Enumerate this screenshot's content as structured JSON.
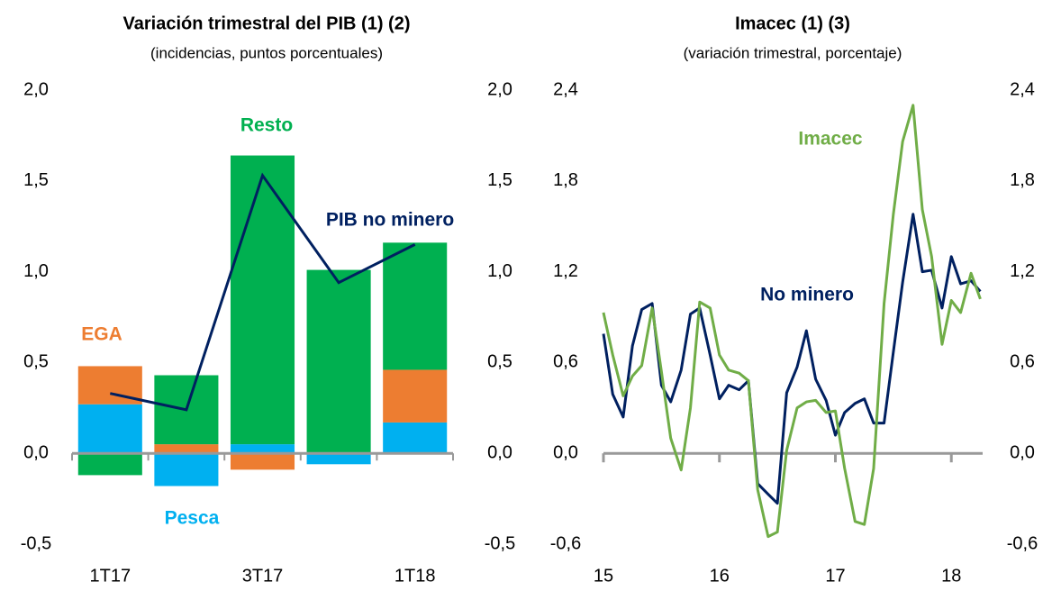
{
  "chart_data": [
    {
      "type": "bar",
      "stacked": true,
      "title": "Variación trimestral del PIB (1) (2)",
      "subtitle": "(incidencias, puntos porcentuales)",
      "categories": [
        "1T17",
        null,
        "3T17",
        null,
        "1T18"
      ],
      "series": [
        {
          "name": "Pesca",
          "color": "#00b0f0",
          "values": [
            0.27,
            -0.18,
            0.05,
            -0.06,
            0.17
          ]
        },
        {
          "name": "EGA",
          "color": "#ed7d31",
          "values": [
            0.21,
            0.05,
            -0.09,
            0,
            0.29
          ]
        },
        {
          "name": "Resto",
          "color": "#00b050",
          "values": [
            -0.12,
            0.38,
            1.59,
            1.01,
            0.7
          ]
        },
        {
          "name": "PIB no minero",
          "color": "#002060",
          "type": "line",
          "values": [
            0.33,
            0.24,
            1.53,
            0.94,
            1.15
          ]
        }
      ],
      "ylim": [
        -0.5,
        2.0
      ],
      "yticks": [
        {
          "value": -0.5,
          "label": "-0,5"
        },
        {
          "value": 0,
          "label": "0,0"
        },
        {
          "value": 0.5,
          "label": "0,5"
        },
        {
          "value": 1.0,
          "label": "1,0"
        },
        {
          "value": 1.5,
          "label": "1,5"
        },
        {
          "value": 2.0,
          "label": "2,0"
        }
      ],
      "grid": false
    },
    {
      "type": "line",
      "title": "Imacec (1) (3)",
      "subtitle": "(variación trimestral, porcentaje)",
      "x": [
        15,
        15.08,
        15.17,
        15.25,
        15.33,
        15.42,
        15.5,
        15.58,
        15.67,
        15.75,
        15.83,
        15.92,
        16,
        16.08,
        16.17,
        16.25,
        16.33,
        16.42,
        16.5,
        16.58,
        16.67,
        16.75,
        16.83,
        16.92,
        17,
        17.08,
        17.17,
        17.25,
        17.33,
        17.42,
        17.5,
        17.58,
        17.67,
        17.75,
        17.83,
        17.92,
        18,
        18.08,
        18.17,
        18.25
      ],
      "series": [
        {
          "name": "No minero",
          "color": "#002060",
          "values": [
            0.79,
            0.39,
            0.24,
            0.71,
            0.95,
            0.99,
            0.45,
            0.34,
            0.55,
            0.92,
            0.96,
            0.65,
            0.36,
            0.45,
            0.42,
            0.48,
            -0.2,
            -0.27,
            -0.33,
            0.4,
            0.57,
            0.81,
            0.49,
            0.35,
            0.12,
            0.27,
            0.33,
            0.36,
            0.2,
            0.2,
            0.67,
            1.13,
            1.58,
            1.2,
            1.21,
            0.96,
            1.3,
            1.12,
            1.14,
            1.07
          ]
        },
        {
          "name": "Imacec",
          "color": "#70ad47",
          "values": [
            0.93,
            0.65,
            0.38,
            0.51,
            0.58,
            0.96,
            0.54,
            0.1,
            -0.11,
            0.3,
            1.0,
            0.96,
            0.65,
            0.55,
            0.53,
            0.48,
            -0.24,
            -0.55,
            -0.52,
            0.02,
            0.3,
            0.34,
            0.35,
            0.27,
            0.28,
            -0.1,
            -0.45,
            -0.47,
            -0.1,
            0.99,
            1.58,
            2.06,
            2.3,
            1.61,
            1.3,
            0.72,
            1.01,
            0.93,
            1.19,
            1.02
          ]
        }
      ],
      "xlim": [
        15,
        18.27
      ],
      "xticks": [
        15,
        16,
        17,
        18
      ],
      "ylim": [
        -0.6,
        2.4
      ],
      "yticks": [
        {
          "value": -0.6,
          "label": "-0,6"
        },
        {
          "value": 0,
          "label": "0,0"
        },
        {
          "value": 0.6,
          "label": "0,6"
        },
        {
          "value": 1.2,
          "label": "1,2"
        },
        {
          "value": 1.8,
          "label": "1,8"
        },
        {
          "value": 2.4,
          "label": "2,4"
        }
      ],
      "grid": false
    }
  ]
}
